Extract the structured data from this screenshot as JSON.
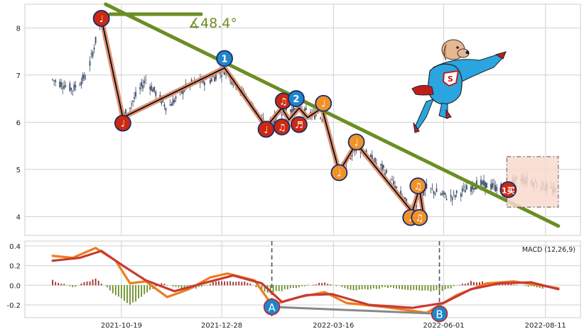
{
  "chart_data": [
    {
      "type": "candlestick",
      "title": "",
      "xlabel": "",
      "ylabel": "",
      "ylim": [
        3.6,
        8.5
      ],
      "yticks": [
        4,
        5,
        6,
        7,
        8
      ],
      "xticks": [
        "2021-10-19",
        "2021-12-28",
        "2022-03-16",
        "2022-06-01",
        "2022-08-11"
      ],
      "grid": true,
      "price_path": [
        {
          "x": "2021-09-01",
          "y": 6.9
        },
        {
          "x": "2021-09-15",
          "y": 6.7
        },
        {
          "x": "2021-09-25",
          "y": 7.0
        },
        {
          "x": "2021-10-05",
          "y": 8.2
        },
        {
          "x": "2021-10-12",
          "y": 7.2
        },
        {
          "x": "2021-10-20",
          "y": 6.1
        },
        {
          "x": "2021-11-05",
          "y": 6.9
        },
        {
          "x": "2021-11-20",
          "y": 6.3
        },
        {
          "x": "2021-12-05",
          "y": 6.8
        },
        {
          "x": "2021-12-20",
          "y": 6.9
        },
        {
          "x": "2021-12-30",
          "y": 7.1
        },
        {
          "x": "2022-01-15",
          "y": 6.5
        },
        {
          "x": "2022-01-28",
          "y": 5.9
        },
        {
          "x": "2022-02-10",
          "y": 6.3
        },
        {
          "x": "2022-02-25",
          "y": 6.2
        },
        {
          "x": "2022-03-10",
          "y": 6.1
        },
        {
          "x": "2022-03-20",
          "y": 4.9
        },
        {
          "x": "2022-04-01",
          "y": 5.5
        },
        {
          "x": "2022-04-20",
          "y": 5.0
        },
        {
          "x": "2022-05-10",
          "y": 4.1
        },
        {
          "x": "2022-05-20",
          "y": 4.6
        },
        {
          "x": "2022-06-05",
          "y": 4.4
        },
        {
          "x": "2022-06-25",
          "y": 4.7
        },
        {
          "x": "2022-07-10",
          "y": 4.6
        },
        {
          "x": "2022-07-25",
          "y": 4.8
        },
        {
          "x": "2022-08-05",
          "y": 4.7
        },
        {
          "x": "2022-08-20",
          "y": 4.5
        }
      ],
      "zigzag_black": [
        {
          "x": "2021-10-05",
          "y": 8.2
        },
        {
          "x": "2021-10-20",
          "y": 6.1
        },
        {
          "x": "2021-12-30",
          "y": 7.15
        },
        {
          "x": "2022-01-28",
          "y": 5.9
        },
        {
          "x": "2022-02-08",
          "y": 6.3
        },
        {
          "x": "2022-02-13",
          "y": 6.05
        },
        {
          "x": "2022-02-20",
          "y": 6.3
        },
        {
          "x": "2022-02-26",
          "y": 6.1
        },
        {
          "x": "2022-03-08",
          "y": 6.3
        },
        {
          "x": "2022-03-20",
          "y": 4.95
        },
        {
          "x": "2022-04-01",
          "y": 5.55
        },
        {
          "x": "2022-05-10",
          "y": 4.1
        },
        {
          "x": "2022-05-15",
          "y": 4.6
        },
        {
          "x": "2022-05-18",
          "y": 4.0
        }
      ],
      "trendline": {
        "from": {
          "x": "2021-10-08",
          "y": 8.5
        },
        "to": {
          "x": "2022-08-20",
          "y": 3.8
        },
        "angle_label": "∡48.4°"
      },
      "markers": [
        {
          "x": "2021-10-05",
          "y": 8.2,
          "label": "♩",
          "color": "#cc2a10"
        },
        {
          "x": "2021-10-20",
          "y": 5.98,
          "label": "♩",
          "color": "#cc2a10"
        },
        {
          "x": "2021-12-30",
          "y": 7.35,
          "label": "1",
          "color": "#1f86c9"
        },
        {
          "x": "2022-01-28",
          "y": 5.85,
          "label": "♩",
          "color": "#cc2a10"
        },
        {
          "x": "2022-02-08",
          "y": 5.9,
          "label": "♫",
          "color": "#cc2a10"
        },
        {
          "x": "2022-02-09",
          "y": 6.45,
          "label": "♫",
          "color": "#cc2a10"
        },
        {
          "x": "2022-02-20",
          "y": 5.95,
          "label": "♬",
          "color": "#cc2a10"
        },
        {
          "x": "2022-02-18",
          "y": 6.5,
          "label": "2",
          "color": "#1f86c9"
        },
        {
          "x": "2022-03-09",
          "y": 6.4,
          "label": "♩",
          "color": "#f0922a"
        },
        {
          "x": "2022-03-20",
          "y": 4.93,
          "label": "♩",
          "color": "#f0922a"
        },
        {
          "x": "2022-04-01",
          "y": 5.58,
          "label": "♩",
          "color": "#f0922a"
        },
        {
          "x": "2022-05-09",
          "y": 3.98,
          "label": "♩",
          "color": "#f0922a"
        },
        {
          "x": "2022-05-14",
          "y": 4.65,
          "label": "♫",
          "color": "#f0922a"
        },
        {
          "x": "2022-05-15",
          "y": 3.98,
          "label": "♫",
          "color": "#f0922a"
        },
        {
          "x": "2022-07-16",
          "y": 4.57,
          "label": "1买",
          "color": "#cc2a10"
        }
      ],
      "box": {
        "x0": "2022-07-15",
        "x1": "2022-08-20",
        "y0": 4.2,
        "y1": 5.27
      }
    },
    {
      "type": "line",
      "legend": "MACD (12,26,9)",
      "ylim": [
        -0.33,
        0.45
      ],
      "yticks": [
        -0.2,
        0.0,
        0.2,
        0.4
      ],
      "series": [
        {
          "color": "#ef7c1a",
          "values": [
            {
              "x": "2021-09-01",
              "y": 0.3
            },
            {
              "x": "2021-09-15",
              "y": 0.28
            },
            {
              "x": "2021-10-01",
              "y": 0.38
            },
            {
              "x": "2021-10-15",
              "y": 0.25
            },
            {
              "x": "2021-10-25",
              "y": 0.02
            },
            {
              "x": "2021-11-05",
              "y": 0.04
            },
            {
              "x": "2021-11-20",
              "y": -0.12
            },
            {
              "x": "2021-12-05",
              "y": -0.04
            },
            {
              "x": "2021-12-20",
              "y": 0.08
            },
            {
              "x": "2022-01-01",
              "y": 0.12
            },
            {
              "x": "2022-01-20",
              "y": 0.05
            },
            {
              "x": "2022-02-01",
              "y": -0.2
            },
            {
              "x": "2022-02-20",
              "y": -0.12
            },
            {
              "x": "2022-03-10",
              "y": -0.07
            },
            {
              "x": "2022-03-25",
              "y": -0.18
            },
            {
              "x": "2022-04-20",
              "y": -0.22
            },
            {
              "x": "2022-05-20",
              "y": -0.28
            },
            {
              "x": "2022-06-10",
              "y": -0.1
            },
            {
              "x": "2022-07-01",
              "y": 0.02
            },
            {
              "x": "2022-07-20",
              "y": 0.04
            },
            {
              "x": "2022-08-20",
              "y": -0.03
            }
          ]
        },
        {
          "color": "#c83a34",
          "values": [
            {
              "x": "2021-09-01",
              "y": 0.25
            },
            {
              "x": "2021-09-20",
              "y": 0.28
            },
            {
              "x": "2021-10-05",
              "y": 0.35
            },
            {
              "x": "2021-10-20",
              "y": 0.2
            },
            {
              "x": "2021-11-05",
              "y": 0.05
            },
            {
              "x": "2021-11-25",
              "y": -0.06
            },
            {
              "x": "2021-12-15",
              "y": 0.02
            },
            {
              "x": "2022-01-05",
              "y": 0.1
            },
            {
              "x": "2022-01-25",
              "y": 0.02
            },
            {
              "x": "2022-02-08",
              "y": -0.17
            },
            {
              "x": "2022-02-25",
              "y": -0.1
            },
            {
              "x": "2022-03-15",
              "y": -0.09
            },
            {
              "x": "2022-04-10",
              "y": -0.2
            },
            {
              "x": "2022-05-10",
              "y": -0.23
            },
            {
              "x": "2022-06-01",
              "y": -0.18
            },
            {
              "x": "2022-06-20",
              "y": -0.04
            },
            {
              "x": "2022-07-10",
              "y": 0.02
            },
            {
              "x": "2022-08-01",
              "y": 0.03
            },
            {
              "x": "2022-08-20",
              "y": -0.04
            }
          ]
        }
      ],
      "histogram": [
        {
          "x": "2021-09-01",
          "y": 0.05
        },
        {
          "x": "2021-09-15",
          "y": -0.02
        },
        {
          "x": "2021-10-01",
          "y": 0.07
        },
        {
          "x": "2021-10-15",
          "y": -0.1
        },
        {
          "x": "2021-10-25",
          "y": -0.2
        },
        {
          "x": "2021-11-15",
          "y": 0.02
        },
        {
          "x": "2021-12-05",
          "y": -0.05
        },
        {
          "x": "2021-12-25",
          "y": 0.04
        },
        {
          "x": "2022-01-15",
          "y": 0.03
        },
        {
          "x": "2022-01-30",
          "y": -0.08
        },
        {
          "x": "2022-02-15",
          "y": -0.03
        },
        {
          "x": "2022-03-10",
          "y": 0.03
        },
        {
          "x": "2022-03-30",
          "y": -0.05
        },
        {
          "x": "2022-04-25",
          "y": -0.02
        },
        {
          "x": "2022-05-15",
          "y": -0.06
        },
        {
          "x": "2022-06-01",
          "y": -0.05
        },
        {
          "x": "2022-06-20",
          "y": 0.04
        },
        {
          "x": "2022-07-15",
          "y": 0.02
        },
        {
          "x": "2022-08-10",
          "y": -0.03
        }
      ],
      "divergence": [
        {
          "x": "2022-02-01",
          "y": -0.22,
          "label": "A"
        },
        {
          "x": "2022-05-29",
          "y": -0.29,
          "label": "B"
        }
      ],
      "vlines": [
        "2022-02-01",
        "2022-05-29"
      ]
    }
  ],
  "colors": {
    "trendline": "#6b8e23",
    "zigzag": "#000000",
    "zigzag_shadow": "#d98a6c",
    "candle": "#3c4d66",
    "bar_up": "#a32a2a",
    "bar_down": "#6b8e23",
    "box_fill": "#f9d9cc",
    "grid": "#d0d0d0"
  },
  "icons": [
    "superhero-dog-icon"
  ]
}
